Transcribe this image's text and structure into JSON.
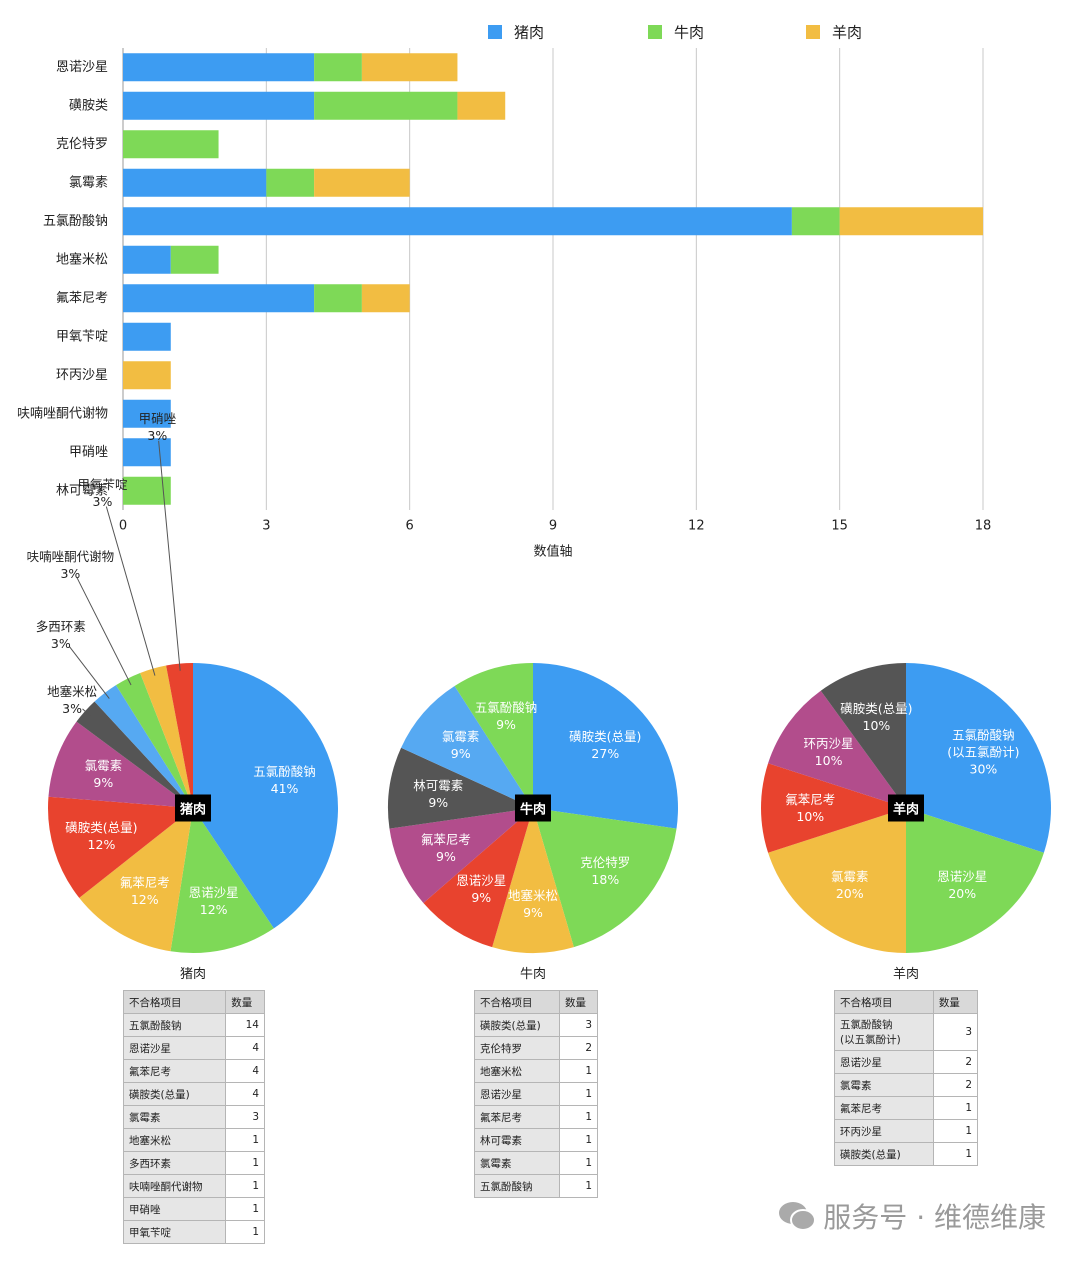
{
  "chart_data": [
    {
      "type": "bar",
      "orientation": "horizontal",
      "stacked": true,
      "x_label": "数值轴",
      "categories": [
        "恩诺沙星",
        "磺胺类",
        "克伦特罗",
        "氯霉素",
        "五氯酚酸钠",
        "地塞米松",
        "氟苯尼考",
        "甲氧苄啶",
        "环丙沙星",
        "呋喃唑酮代谢物",
        "甲硝唑",
        "林可霉素"
      ],
      "series": [
        {
          "name": "猪肉",
          "color": "#3d9cf2",
          "values": [
            4,
            4,
            0,
            3,
            14,
            1,
            4,
            1,
            0,
            1,
            1,
            0
          ]
        },
        {
          "name": "牛肉",
          "color": "#7ed957",
          "values": [
            1,
            3,
            2,
            1,
            1,
            1,
            1,
            0,
            0,
            0,
            0,
            1
          ]
        },
        {
          "name": "羊肉",
          "color": "#f2bd42",
          "values": [
            2,
            1,
            0,
            2,
            3,
            0,
            1,
            0,
            1,
            0,
            0,
            0
          ]
        }
      ],
      "xlim": [
        0,
        18
      ],
      "xticks": [
        0,
        3,
        6,
        9,
        12,
        15,
        18
      ],
      "grid": true,
      "legend": "top"
    },
    {
      "type": "pie",
      "title": "猪肉",
      "center_label": "猪肉",
      "labels": [
        "五氯酚酸钠",
        "恩诺沙星",
        "氟苯尼考",
        "磺胺类(总量)",
        "氯霉素",
        "地塞米松",
        "多西环素",
        "呋喃唑酮代谢物",
        "甲氧苄啶",
        "甲硝唑"
      ],
      "values": [
        41,
        12,
        12,
        12,
        9,
        3,
        3,
        3,
        3,
        3
      ],
      "value_labels": [
        "41%",
        "12%",
        "12%",
        "12%",
        "9%",
        "3%",
        "3%",
        "3%",
        "3%",
        "3%"
      ],
      "colors": [
        "#3d9cf2",
        "#7ed957",
        "#f2bd42",
        "#e8432e",
        "#b24d8c",
        "#555555",
        "#56a9f2",
        "#7ed957",
        "#f2bd42",
        "#e8432e"
      ]
    },
    {
      "type": "pie",
      "title": "牛肉",
      "center_label": "牛肉",
      "labels": [
        "磺胺类(总量)",
        "克伦特罗",
        "地塞米松",
        "恩诺沙星",
        "氟苯尼考",
        "林可霉素",
        "氯霉素",
        "五氯酚酸钠"
      ],
      "values": [
        27,
        18,
        9,
        9,
        9,
        9,
        9,
        9
      ],
      "value_labels": [
        "27%",
        "18%",
        "9%",
        "9%",
        "9%",
        "9%",
        "9%",
        "9%"
      ],
      "colors": [
        "#3d9cf2",
        "#7ed957",
        "#f2bd42",
        "#e8432e",
        "#b24d8c",
        "#555555",
        "#56a9f2",
        "#7ed957"
      ]
    },
    {
      "type": "pie",
      "title": "羊肉",
      "center_label": "羊肉",
      "labels": [
        "五氯酚酸钠\n(以五氯酚计)",
        "恩诺沙星",
        "氯霉素",
        "氟苯尼考",
        "环丙沙星",
        "磺胺类(总量)"
      ],
      "values": [
        30,
        20,
        20,
        10,
        10,
        10
      ],
      "value_labels": [
        "30%",
        "20%",
        "20%",
        "10%",
        "10%",
        "10%"
      ],
      "colors": [
        "#3d9cf2",
        "#7ed957",
        "#f2bd42",
        "#e8432e",
        "#b24d8c",
        "#555555"
      ]
    }
  ],
  "tables": [
    {
      "header": [
        "不合格项目",
        "数量"
      ],
      "rows": [
        [
          "五氯酚酸钠",
          14
        ],
        [
          "恩诺沙星",
          4
        ],
        [
          "氟苯尼考",
          4
        ],
        [
          "磺胺类(总量)",
          4
        ],
        [
          "氯霉素",
          3
        ],
        [
          "地塞米松",
          1
        ],
        [
          "多西环素",
          1
        ],
        [
          "呋喃唑酮代谢物",
          1
        ],
        [
          "甲硝唑",
          1
        ],
        [
          "甲氧苄啶",
          1
        ]
      ]
    },
    {
      "header": [
        "不合格项目",
        "数量"
      ],
      "rows": [
        [
          "磺胺类(总量)",
          3
        ],
        [
          "克伦特罗",
          2
        ],
        [
          "地塞米松",
          1
        ],
        [
          "恩诺沙星",
          1
        ],
        [
          "氟苯尼考",
          1
        ],
        [
          "林可霉素",
          1
        ],
        [
          "氯霉素",
          1
        ],
        [
          "五氯酚酸钠",
          1
        ]
      ]
    },
    {
      "header": [
        "不合格项目",
        "数量"
      ],
      "rows": [
        [
          "五氯酚酸钠\n(以五氯酚计)",
          3
        ],
        [
          "恩诺沙星",
          2
        ],
        [
          "氯霉素",
          2
        ],
        [
          "氟苯尼考",
          1
        ],
        [
          "环丙沙星",
          1
        ],
        [
          "磺胺类(总量)",
          1
        ]
      ]
    }
  ],
  "watermark": "服务号 · 维德维康"
}
